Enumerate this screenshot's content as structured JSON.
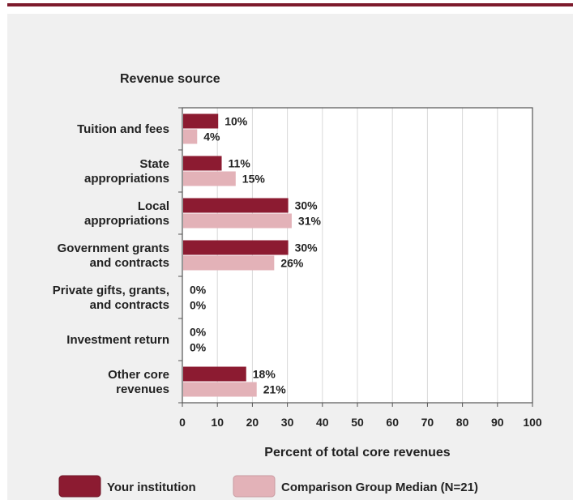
{
  "chart_data": {
    "type": "bar",
    "orientation": "horizontal",
    "title": "Revenue source",
    "xlabel": "Percent of total core revenues",
    "ylabel": "",
    "xlim": [
      0,
      100
    ],
    "x_ticks": [
      "0",
      "10",
      "20",
      "30",
      "40",
      "50",
      "60",
      "70",
      "80",
      "90",
      "100"
    ],
    "grid": true,
    "legend_position": "bottom",
    "categories": [
      [
        "Tuition and fees"
      ],
      [
        "State",
        "appropriations"
      ],
      [
        "Local",
        "appropriations"
      ],
      [
        "Government grants",
        "and contracts"
      ],
      [
        "Private gifts, grants,",
        "and contracts"
      ],
      [
        "Investment return"
      ],
      [
        "Other core",
        "revenues"
      ]
    ],
    "series": [
      {
        "name": "Your institution",
        "color": "#8c1b31",
        "values": [
          10,
          11,
          30,
          30,
          0,
          0,
          18
        ],
        "labels": [
          "10%",
          "11%",
          "30%",
          "30%",
          "0%",
          "0%",
          "18%"
        ]
      },
      {
        "name": "Comparison Group Median (N=21)",
        "color": "#e3b2b8",
        "values": [
          4,
          15,
          31,
          26,
          0,
          0,
          21
        ],
        "labels": [
          "4%",
          "15%",
          "31%",
          "26%",
          "0%",
          "0%",
          "21%"
        ]
      }
    ]
  },
  "colors": {
    "accent_bar": "#7d1a2c",
    "panel_bg": "#f0f0f0",
    "plot_bg": "#ffffff",
    "grid": "#d8d8d8"
  }
}
